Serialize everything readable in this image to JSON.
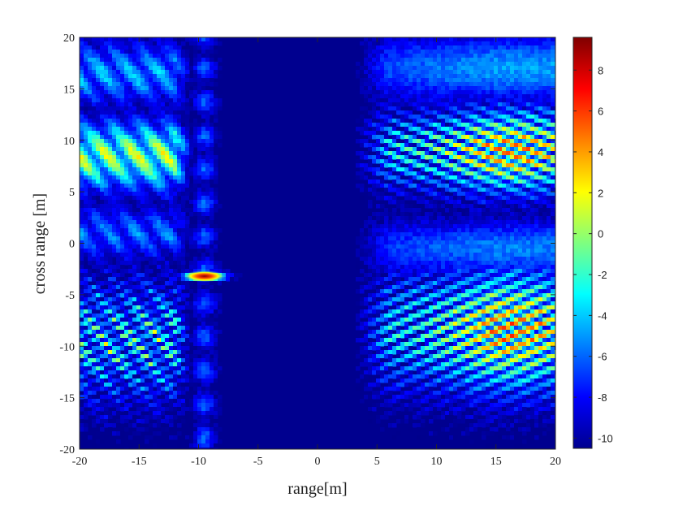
{
  "chart_data": {
    "type": "heatmap",
    "title": "",
    "xlabel": "range[m]",
    "ylabel": "cross range [m]",
    "xlim": [
      -20,
      20
    ],
    "ylim": [
      -20,
      20
    ],
    "x_ticks": [
      "-20",
      "-15",
      "-10",
      "-5",
      "0",
      "5",
      "10",
      "15",
      "20"
    ],
    "y_ticks": [
      "20",
      "15",
      "10",
      "5",
      "0",
      "-5",
      "-10",
      "-15",
      "-20"
    ],
    "colorbar": {
      "colormap": "jet",
      "range": [
        -10.5,
        9.6
      ],
      "ticks": [
        "8",
        "6",
        "4",
        "2",
        "0",
        "-2",
        "-4",
        "-6",
        "-8",
        "-10"
      ]
    },
    "peak": {
      "x": -9.5,
      "y": -3.2,
      "value": 9.6
    },
    "features": [
      {
        "region": "left-upper lobe",
        "x_range": [
          -20,
          -11
        ],
        "y_range": [
          5,
          13
        ],
        "approx_value": -3
      },
      {
        "region": "left-lower lobe",
        "x_range": [
          -20,
          -11
        ],
        "y_range": [
          -16,
          -3
        ],
        "approx_value": -4
      },
      {
        "region": "right-upper lobe",
        "x_range": [
          3,
          20
        ],
        "y_range": [
          4,
          13
        ],
        "approx_value": -2
      },
      {
        "region": "right-lower lobe",
        "x_range": [
          4,
          20
        ],
        "y_range": [
          -17,
          -2
        ],
        "approx_value": -2
      },
      {
        "region": "central blank band",
        "x_range": [
          -8,
          3
        ],
        "y_range": [
          -20,
          20
        ],
        "approx_value": -10.5
      }
    ],
    "grid": false,
    "colors": {
      "background": "#00008f",
      "peak": "#8b0000"
    }
  }
}
